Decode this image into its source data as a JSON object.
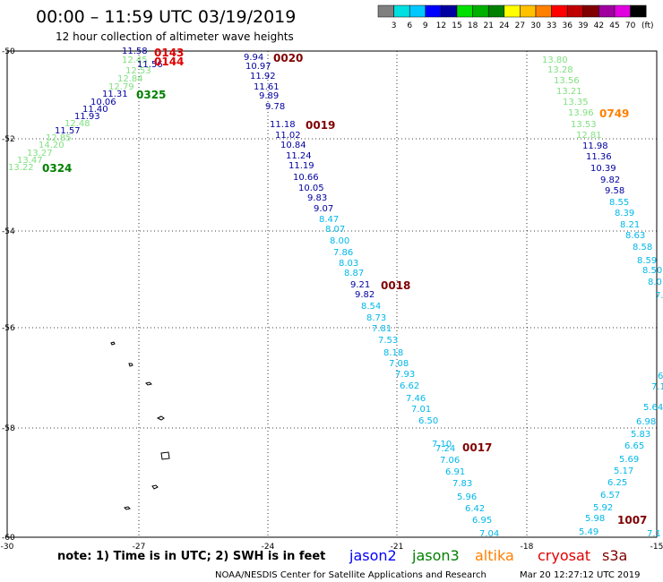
{
  "header": {
    "title": "00:00 – 11:59 UTC 03/19/2019",
    "subtitle": "12 hour collection of altimeter wave heights"
  },
  "color_scale": {
    "unit": "(ft)",
    "colors": [
      "#808080",
      "#00e0e0",
      "#00c8ff",
      "#0000ff",
      "#0000a0",
      "#00e000",
      "#00b000",
      "#008000",
      "#ffff00",
      "#ffc000",
      "#ff8000",
      "#ff0000",
      "#c00000",
      "#800000",
      "#a000a0",
      "#e000e0",
      "#000000"
    ],
    "labels": [
      "3",
      "6",
      "9",
      "12",
      "15",
      "18",
      "21",
      "24",
      "27",
      "30",
      "33",
      "36",
      "39",
      "42",
      "45",
      "70"
    ]
  },
  "axes": {
    "lat_labels": [
      "-50",
      "-52",
      "-54",
      "-56",
      "-58",
      "-60"
    ],
    "lon_labels": [
      "-30",
      "-27",
      "-24",
      "-21",
      "-18",
      "-15"
    ]
  },
  "wave_colors": {
    "c3": "#00b8e8",
    "c9": "#0000a0",
    "c12": "#00a000",
    "c15": "#80e080",
    "c18": "#00b000"
  },
  "tracks": {
    "t0324": [
      {
        "v": "11.58",
        "c": "#0000a0"
      },
      {
        "v": "12.45",
        "c": "#80e080"
      },
      {
        "v": "11.56",
        "c": "#0000a0"
      },
      {
        "v": "12.53",
        "c": "#80e080"
      },
      {
        "v": "12.84",
        "c": "#80e080"
      },
      {
        "v": "12.79",
        "c": "#80e080"
      },
      {
        "v": "11.31",
        "c": "#0000a0"
      },
      {
        "v": "10.06",
        "c": "#0000a0"
      },
      {
        "v": "11.40",
        "c": "#0000a0"
      },
      {
        "v": "11.93",
        "c": "#0000a0"
      },
      {
        "v": "12.48",
        "c": "#80e080"
      },
      {
        "v": "11.57",
        "c": "#0000a0"
      },
      {
        "v": "12.85",
        "c": "#80e080"
      },
      {
        "v": "14.20",
        "c": "#80e080"
      },
      {
        "v": "13.27",
        "c": "#80e080"
      },
      {
        "v": "13.47",
        "c": "#80e080"
      },
      {
        "v": "13.22",
        "c": "#80e080"
      }
    ],
    "t0020": [
      {
        "v": "9.94",
        "c": "#0000a0"
      },
      {
        "v": "10.97",
        "c": "#0000a0"
      },
      {
        "v": "11.92",
        "c": "#0000a0"
      },
      {
        "v": "11.61",
        "c": "#0000a0"
      },
      {
        "v": "9.89",
        "c": "#0000a0"
      },
      {
        "v": "9.78",
        "c": "#0000a0"
      },
      {
        "v": "11.18",
        "c": "#0000a0"
      },
      {
        "v": "11.02",
        "c": "#0000a0"
      },
      {
        "v": "10.84",
        "c": "#0000a0"
      },
      {
        "v": "11.24",
        "c": "#0000a0"
      },
      {
        "v": "11.19",
        "c": "#0000a0"
      },
      {
        "v": "10.66",
        "c": "#0000a0"
      },
      {
        "v": "10.05",
        "c": "#0000a0"
      },
      {
        "v": "9.83",
        "c": "#0000a0"
      },
      {
        "v": "9.07",
        "c": "#0000a0"
      },
      {
        "v": "8.47",
        "c": "#00b8e8"
      },
      {
        "v": "8.07",
        "c": "#00b8e8"
      },
      {
        "v": "8.00",
        "c": "#00b8e8"
      },
      {
        "v": "7.86",
        "c": "#00b8e8"
      },
      {
        "v": "8.03",
        "c": "#00b8e8"
      },
      {
        "v": "8.87",
        "c": "#00b8e8"
      },
      {
        "v": "9.21",
        "c": "#0000a0"
      },
      {
        "v": "9.82",
        "c": "#0000a0"
      },
      {
        "v": "8.54",
        "c": "#00b8e8"
      },
      {
        "v": "8.73",
        "c": "#00b8e8"
      },
      {
        "v": "7.81",
        "c": "#00b8e8"
      },
      {
        "v": "7.53",
        "c": "#00b8e8"
      },
      {
        "v": "8.18",
        "c": "#00b8e8"
      },
      {
        "v": "7.08",
        "c": "#00b8e8"
      },
      {
        "v": "7.93",
        "c": "#00b8e8"
      },
      {
        "v": "6.62",
        "c": "#00b8e8"
      },
      {
        "v": "7.46",
        "c": "#00b8e8"
      },
      {
        "v": "7.01",
        "c": "#00b8e8"
      },
      {
        "v": "6.50",
        "c": "#00b8e8"
      },
      {
        "v": "7.10",
        "c": "#00b8e8"
      },
      {
        "v": "7.24",
        "c": "#00b8e8"
      },
      {
        "v": "7.06",
        "c": "#00b8e8"
      },
      {
        "v": "6.91",
        "c": "#00b8e8"
      },
      {
        "v": "7.83",
        "c": "#00b8e8"
      },
      {
        "v": "5.96",
        "c": "#00b8e8"
      },
      {
        "v": "6.42",
        "c": "#00b8e8"
      },
      {
        "v": "6.95",
        "c": "#00b8e8"
      },
      {
        "v": "7.04",
        "c": "#00b8e8"
      }
    ],
    "t0749": [
      {
        "v": "13.80",
        "c": "#80e080"
      },
      {
        "v": "13.28",
        "c": "#80e080"
      },
      {
        "v": "13.56",
        "c": "#80e080"
      },
      {
        "v": "13.21",
        "c": "#80e080"
      },
      {
        "v": "13.35",
        "c": "#80e080"
      },
      {
        "v": "13.96",
        "c": "#80e080"
      },
      {
        "v": "13.53",
        "c": "#80e080"
      },
      {
        "v": "12.81",
        "c": "#80e080"
      },
      {
        "v": "11.98",
        "c": "#0000a0"
      },
      {
        "v": "11.36",
        "c": "#0000a0"
      },
      {
        "v": "10.39",
        "c": "#0000a0"
      },
      {
        "v": "9.82",
        "c": "#0000a0"
      },
      {
        "v": "9.58",
        "c": "#0000a0"
      },
      {
        "v": "8.55",
        "c": "#00b8e8"
      },
      {
        "v": "8.39",
        "c": "#00b8e8"
      },
      {
        "v": "8.21",
        "c": "#00b8e8"
      },
      {
        "v": "8.63",
        "c": "#00b8e8"
      },
      {
        "v": "8.58",
        "c": "#00b8e8"
      },
      {
        "v": "8.59",
        "c": "#00b8e8"
      },
      {
        "v": "8.50",
        "c": "#00b8e8"
      },
      {
        "v": "8.0",
        "c": "#00b8e8"
      },
      {
        "v": "7.",
        "c": "#00b8e8"
      }
    ],
    "t1007": [
      {
        "v": "6.",
        "c": "#00b8e8"
      },
      {
        "v": "7.1",
        "c": "#00b8e8"
      },
      {
        "v": "5.64",
        "c": "#00b8e8"
      },
      {
        "v": "6.98",
        "c": "#00b8e8"
      },
      {
        "v": "5.83",
        "c": "#00b8e8"
      },
      {
        "v": "6.65",
        "c": "#00b8e8"
      },
      {
        "v": "5.69",
        "c": "#00b8e8"
      },
      {
        "v": "5.17",
        "c": "#00b8e8"
      },
      {
        "v": "6.25",
        "c": "#00b8e8"
      },
      {
        "v": "6.57",
        "c": "#00b8e8"
      },
      {
        "v": "5.92",
        "c": "#00b8e8"
      },
      {
        "v": "5.98",
        "c": "#00b8e8"
      },
      {
        "v": "5.49",
        "c": "#00b8e8"
      },
      {
        "v": "7.1",
        "c": "#00b8e8"
      }
    ]
  },
  "passes": [
    {
      "label": "0143",
      "color": "#e00000"
    },
    {
      "label": "0144",
      "color": "#e00000"
    },
    {
      "label": "0325",
      "color": "#008000"
    },
    {
      "label": "0324",
      "color": "#008000"
    },
    {
      "label": "0020",
      "color": "#800000"
    },
    {
      "label": "0019",
      "color": "#800000"
    },
    {
      "label": "0018",
      "color": "#800000"
    },
    {
      "label": "0017",
      "color": "#800000"
    },
    {
      "label": "0749",
      "color": "#ff8000"
    },
    {
      "label": "1007",
      "color": "#800000"
    }
  ],
  "footer": {
    "note": "note:  1) Time is in UTC;  2) SWH is in feet",
    "legend": [
      {
        "label": "jason2",
        "color": "#0000ff"
      },
      {
        "label": "jason3",
        "color": "#008000"
      },
      {
        "label": "altika",
        "color": "#ff8000"
      },
      {
        "label": "cryosat",
        "color": "#e00000"
      },
      {
        "label": "s3a",
        "color": "#800000"
      }
    ],
    "credit": "NOAA/NESDIS Center for Satellite Applications and Research",
    "timestamp": "Mar 20 12:27:12 UTC 2019"
  }
}
